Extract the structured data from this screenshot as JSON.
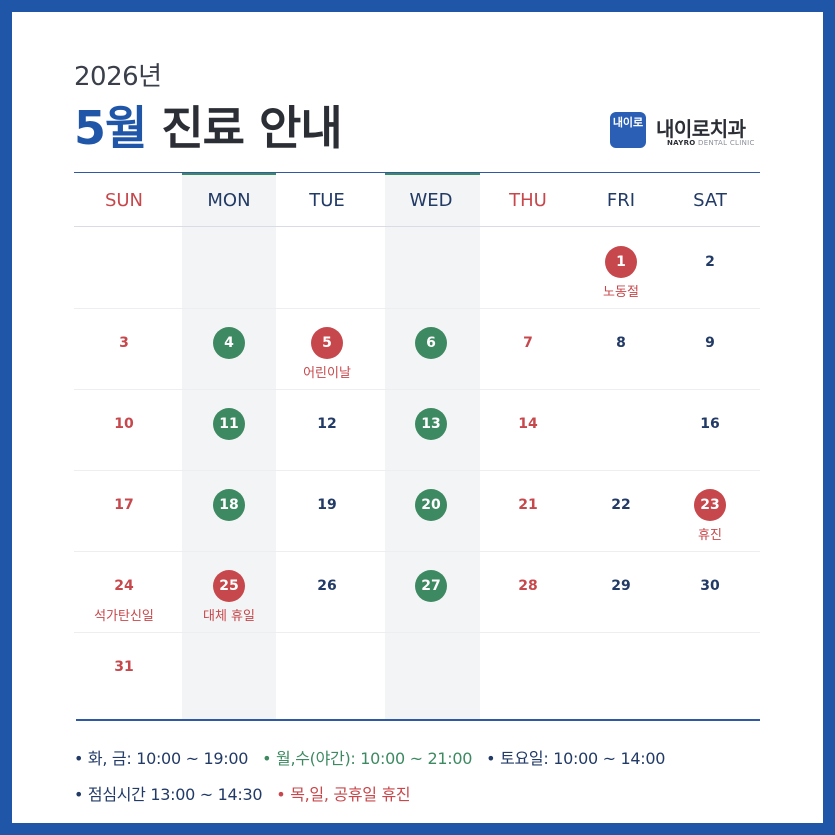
{
  "header": {
    "year": "2026년",
    "title_month": "5월",
    "title_rest": " 진료 안내"
  },
  "logo": {
    "mark_text": "내이로",
    "name": "내이로치과",
    "sub_bold": "NAYRO",
    "sub_rest": " DENTAL CLINIC"
  },
  "calendar": {
    "weekdays": [
      "SUN",
      "MON",
      "TUE",
      "WED",
      "THU",
      "FRI",
      "SAT"
    ],
    "weekday_colors": [
      "#c7484c",
      "#223a66",
      "#223a66",
      "#223a66",
      "#c7484c",
      "#223a66",
      "#223a66"
    ],
    "highlight_columns": [
      "MON",
      "WED"
    ],
    "weeks": [
      [
        null,
        null,
        null,
        null,
        null,
        {
          "num": "1",
          "style": "c-red",
          "note": "노동절"
        },
        {
          "num": "2",
          "style": "t-blue"
        }
      ],
      [
        {
          "num": "3",
          "style": "t-red"
        },
        {
          "num": "4",
          "style": "c-green"
        },
        {
          "num": "5",
          "style": "c-red",
          "note": "어린이날"
        },
        {
          "num": "6",
          "style": "c-green"
        },
        {
          "num": "7",
          "style": "t-red"
        },
        {
          "num": "8",
          "style": "t-blue"
        },
        {
          "num": "9",
          "style": "t-blue"
        }
      ],
      [
        {
          "num": "10",
          "style": "t-red"
        },
        {
          "num": "11",
          "style": "c-green"
        },
        {
          "num": "12",
          "style": "t-blue"
        },
        {
          "num": "13",
          "style": "c-green"
        },
        {
          "num": "14",
          "style": "t-red"
        },
        null,
        {
          "num": "16",
          "style": "t-blue"
        }
      ],
      [
        {
          "num": "17",
          "style": "t-red"
        },
        {
          "num": "18",
          "style": "c-green"
        },
        {
          "num": "19",
          "style": "t-blue"
        },
        {
          "num": "20",
          "style": "c-green"
        },
        {
          "num": "21",
          "style": "t-red"
        },
        {
          "num": "22",
          "style": "t-blue"
        },
        {
          "num": "23",
          "style": "c-red",
          "note": "휴진"
        }
      ],
      [
        {
          "num": "24",
          "style": "t-red",
          "note": "석가탄신일"
        },
        {
          "num": "25",
          "style": "c-red",
          "note": "대체 휴일"
        },
        {
          "num": "26",
          "style": "t-blue"
        },
        {
          "num": "27",
          "style": "c-green"
        },
        {
          "num": "28",
          "style": "t-red"
        },
        {
          "num": "29",
          "style": "t-blue"
        },
        {
          "num": "30",
          "style": "t-blue"
        }
      ],
      [
        {
          "num": "31",
          "style": "t-red"
        },
        null,
        null,
        null,
        null,
        null,
        null
      ]
    ]
  },
  "legend": {
    "line1": [
      {
        "text": "• 화, 금: 10:00 ~ 19:00",
        "color": "navy"
      },
      {
        "text": "• 월,수(야간): 10:00 ~ 21:00",
        "color": "green"
      },
      {
        "text": "• 토요일: 10:00 ~ 14:00",
        "color": "navy"
      }
    ],
    "line2": [
      {
        "text": "• 점심시간 13:00 ~ 14:30",
        "color": "navy"
      },
      {
        "text": "• 목,일, 공휴일 휴진",
        "color": "red"
      }
    ]
  },
  "colors": {
    "border": "#1f56a8",
    "accent_green": "#3d8a62",
    "accent_red": "#c7484c",
    "navy": "#223a66"
  }
}
